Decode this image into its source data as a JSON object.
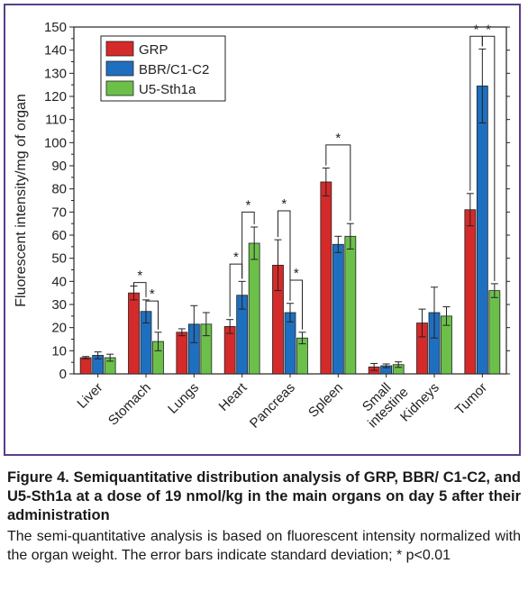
{
  "chart_data": {
    "type": "bar",
    "ylabel": "Fluorescent intensity/mg of organ",
    "ylim": [
      0,
      150
    ],
    "yticks": [
      0,
      10,
      20,
      30,
      40,
      50,
      60,
      70,
      80,
      90,
      100,
      110,
      120,
      130,
      140,
      150
    ],
    "legend_position": "top-left",
    "categories": [
      "Liver",
      "Stomach",
      "Lungs",
      "Heart",
      "Pancreas",
      "Spleen",
      "Small intestine",
      "Kidneys",
      "Tumor"
    ],
    "series": [
      {
        "name": "GRP",
        "color": "#d42a2a",
        "values": [
          7,
          35,
          18,
          20.5,
          47,
          83,
          3,
          22,
          71
        ],
        "errors": [
          0.5,
          3,
          1.5,
          3,
          11,
          6,
          1.5,
          6,
          7
        ]
      },
      {
        "name": "BBR/C1-C2",
        "color": "#1f6fc1",
        "values": [
          8,
          27,
          21.5,
          34,
          26.5,
          56,
          3.5,
          26.5,
          124.5
        ],
        "errors": [
          1.5,
          5,
          8,
          6,
          4,
          3.5,
          0.8,
          11,
          16
        ]
      },
      {
        "name": "U5-Sth1a",
        "color": "#6cc04a",
        "values": [
          7,
          14,
          21.5,
          56.5,
          15.5,
          59.5,
          4,
          25,
          36
        ],
        "errors": [
          1.5,
          4,
          5,
          7,
          2.5,
          5.5,
          1.2,
          4,
          3
        ]
      }
    ],
    "annotations": [
      {
        "category": "Stomach",
        "from": 0,
        "to": 1,
        "y": 39.5,
        "text": "*"
      },
      {
        "category": "Stomach",
        "from": 1,
        "to": 2,
        "y": 31.5,
        "text": "*"
      },
      {
        "category": "Heart",
        "from": 0,
        "to": 1,
        "y": 47.5,
        "text": "*"
      },
      {
        "category": "Heart",
        "from": 1,
        "to": 2,
        "y": 70,
        "text": "*"
      },
      {
        "category": "Pancreas",
        "from": 0,
        "to": 1,
        "y": 70.5,
        "text": "*"
      },
      {
        "category": "Pancreas",
        "from": 1,
        "to": 2,
        "y": 40.5,
        "text": "*"
      },
      {
        "category": "Spleen",
        "from": 0,
        "to": 2,
        "y": 99,
        "text": "*"
      },
      {
        "category": "Tumor",
        "from": 0,
        "to": 1,
        "y": 146,
        "text": "*"
      },
      {
        "category": "Tumor",
        "from": 1,
        "to": 2,
        "y": 146,
        "text": "*"
      }
    ]
  },
  "caption": {
    "title": "Figure 4. Semiquantitative distribution analysis of GRP, BBR/ C1-C2, and U5-Sth1a at a dose of 19 nmol/kg in the main organs on day 5 after their administration",
    "text": "The semi-quantitative analysis is based on fluorescent intensity normalized with the organ weight. The error bars indicate standard deviation; * p<0.01"
  }
}
